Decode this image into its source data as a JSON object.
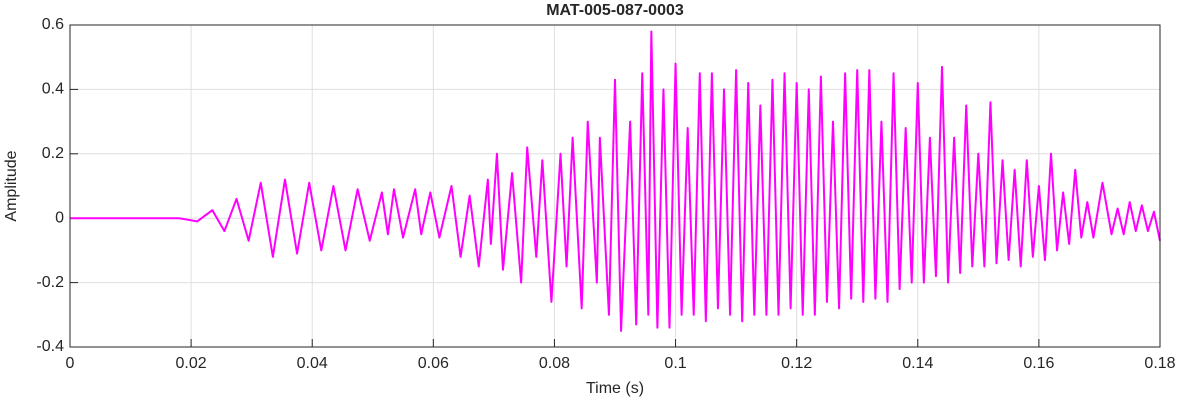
{
  "chart_data": {
    "type": "line",
    "title": "MAT-005-087-0003",
    "xlabel": "Time (s)",
    "ylabel": "Amplitude",
    "xlim": [
      0,
      0.18
    ],
    "xticks": [
      0,
      0.02,
      0.04,
      0.06,
      0.08,
      0.1,
      0.12,
      0.14,
      0.16,
      0.18
    ],
    "ylim": [
      -0.4,
      0.6
    ],
    "yticks": [
      -0.4,
      -0.2,
      0,
      0.2,
      0.4,
      0.6
    ],
    "grid": true,
    "series": [
      {
        "color": "#ff00ff",
        "x": [
          0,
          0.015,
          0.018,
          0.021,
          0.0235,
          0.0255,
          0.0275,
          0.0295,
          0.0315,
          0.0335,
          0.0355,
          0.0375,
          0.0395,
          0.0415,
          0.0435,
          0.0455,
          0.0475,
          0.0495,
          0.0515,
          0.0525,
          0.0535,
          0.055,
          0.057,
          0.058,
          0.0595,
          0.061,
          0.063,
          0.0645,
          0.066,
          0.0675,
          0.069,
          0.0695,
          0.0705,
          0.0715,
          0.073,
          0.0745,
          0.0755,
          0.077,
          0.078,
          0.0795,
          0.081,
          0.082,
          0.083,
          0.0845,
          0.0855,
          0.087,
          0.0875,
          0.089,
          0.09,
          0.091,
          0.0925,
          0.0935,
          0.0945,
          0.0955,
          0.096,
          0.097,
          0.098,
          0.099,
          0.1,
          0.101,
          0.102,
          0.103,
          0.104,
          0.105,
          0.106,
          0.107,
          0.108,
          0.109,
          0.11,
          0.111,
          0.112,
          0.113,
          0.114,
          0.115,
          0.116,
          0.117,
          0.118,
          0.119,
          0.12,
          0.121,
          0.122,
          0.123,
          0.124,
          0.125,
          0.126,
          0.127,
          0.128,
          0.129,
          0.13,
          0.131,
          0.132,
          0.133,
          0.134,
          0.135,
          0.136,
          0.137,
          0.138,
          0.139,
          0.14,
          0.141,
          0.142,
          0.143,
          0.144,
          0.145,
          0.146,
          0.147,
          0.148,
          0.149,
          0.15,
          0.151,
          0.152,
          0.153,
          0.154,
          0.155,
          0.156,
          0.157,
          0.158,
          0.159,
          0.16,
          0.161,
          0.162,
          0.163,
          0.164,
          0.165,
          0.166,
          0.167,
          0.168,
          0.169,
          0.1705,
          0.172,
          0.173,
          0.174,
          0.175,
          0.176,
          0.177,
          0.178,
          0.179,
          0.18
        ],
        "values": [
          0,
          0,
          0,
          -0.01,
          0.025,
          -0.04,
          0.06,
          -0.07,
          0.11,
          -0.12,
          0.12,
          -0.11,
          0.11,
          -0.1,
          0.1,
          -0.1,
          0.09,
          -0.07,
          0.08,
          -0.05,
          0.09,
          -0.06,
          0.09,
          -0.05,
          0.08,
          -0.06,
          0.1,
          -0.12,
          0.07,
          -0.15,
          0.12,
          -0.08,
          0.2,
          -0.16,
          0.14,
          -0.2,
          0.22,
          -0.12,
          0.18,
          -0.26,
          0.2,
          -0.15,
          0.25,
          -0.28,
          0.3,
          -0.2,
          0.25,
          -0.3,
          0.43,
          -0.35,
          0.3,
          -0.33,
          0.45,
          -0.3,
          0.58,
          -0.34,
          0.4,
          -0.34,
          0.48,
          -0.3,
          0.28,
          -0.3,
          0.45,
          -0.32,
          0.45,
          -0.28,
          0.4,
          -0.3,
          0.46,
          -0.32,
          0.42,
          -0.3,
          0.35,
          -0.3,
          0.43,
          -0.3,
          0.45,
          -0.28,
          0.42,
          -0.3,
          0.4,
          -0.3,
          0.44,
          -0.26,
          0.3,
          -0.28,
          0.45,
          -0.25,
          0.46,
          -0.26,
          0.46,
          -0.25,
          0.3,
          -0.26,
          0.45,
          -0.22,
          0.28,
          -0.2,
          0.42,
          -0.2,
          0.25,
          -0.18,
          0.47,
          -0.2,
          0.25,
          -0.17,
          0.35,
          -0.15,
          0.2,
          -0.15,
          0.36,
          -0.14,
          0.18,
          -0.13,
          0.15,
          -0.15,
          0.18,
          -0.12,
          0.1,
          -0.13,
          0.2,
          -0.1,
          0.08,
          -0.08,
          0.15,
          -0.06,
          0.05,
          -0.06,
          0.11,
          -0.05,
          0.03,
          -0.05,
          0.05,
          -0.04,
          0.04,
          -0.04,
          0.02,
          -0.07
        ]
      }
    ]
  }
}
